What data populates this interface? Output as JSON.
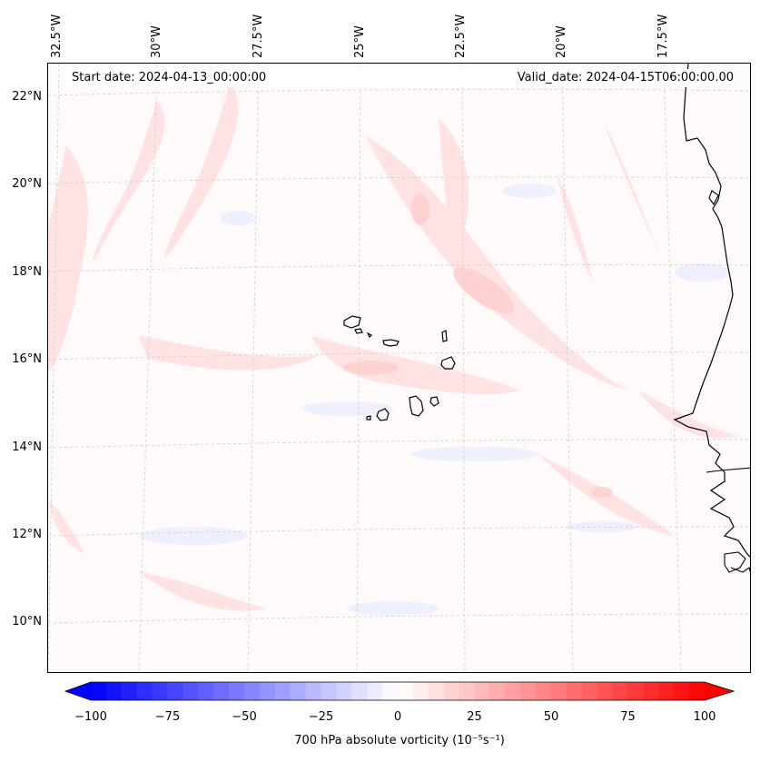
{
  "header": {
    "start_date": "Start date: 2024-04-13_00:00:00",
    "valid_date": "Valid_date: 2024-04-15T06:00:00.00"
  },
  "map": {
    "lat_labels": [
      "22°N",
      "20°N",
      "18°N",
      "16°N",
      "14°N",
      "12°N",
      "10°N"
    ],
    "lon_labels": [
      "32.5°W",
      "30°W",
      "27.5°W",
      "25°W",
      "22.5°W",
      "20°W",
      "17.5°W"
    ],
    "coastline_color": "#000000",
    "gridline_color": "#cccccc",
    "field_colors": {
      "positive": "#ffe6e6",
      "negative": "#f2f4ff",
      "background": "#fffafa"
    },
    "features": [
      "Cape Verde islands",
      "West African coastline"
    ]
  },
  "colorbar": {
    "ticks": [
      "−100",
      "−75",
      "−50",
      "−25",
      "0",
      "25",
      "50",
      "75",
      "100"
    ],
    "min": -100,
    "max": 100,
    "step": 5,
    "colormap": "bwr",
    "extend": "both",
    "label": "700 hPa absolute vorticity (10⁻⁵s⁻¹)"
  }
}
